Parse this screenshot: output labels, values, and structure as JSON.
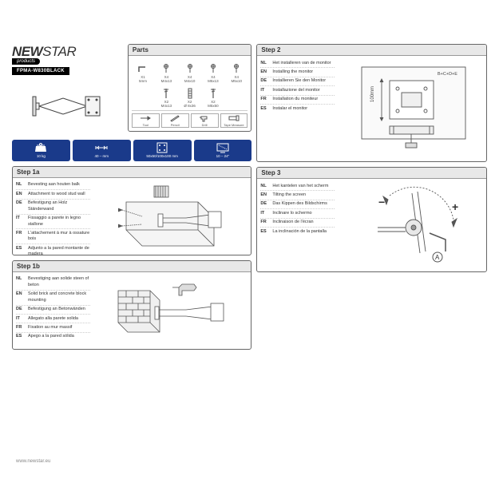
{
  "brand": {
    "name_1": "NEW",
    "name_2": "STAR",
    "sub": "products",
    "model": "FPMA-W830BLACK"
  },
  "specs": [
    {
      "value": "10 kg",
      "icon": "weight"
    },
    {
      "value": "40 – mm",
      "icon": "depth"
    },
    {
      "value": "50x50/100x100 mm",
      "icon": "vesa"
    },
    {
      "value": "10 – 24\"",
      "icon": "screen"
    }
  ],
  "parts": {
    "title": "Parts",
    "items": [
      {
        "label": "5mm",
        "qty": "X1",
        "glyph": "hexkey"
      },
      {
        "label": "M4x13",
        "qty": "X4",
        "glyph": "screw"
      },
      {
        "label": "M4x10",
        "qty": "X4",
        "glyph": "screw"
      },
      {
        "label": "M5x13",
        "qty": "X4",
        "glyph": "screw"
      },
      {
        "label": "M5x10",
        "qty": "X4",
        "glyph": "screw"
      },
      {
        "label": "",
        "qty": "",
        "glyph": ""
      },
      {
        "label": "M4x13",
        "qty": "X2",
        "glyph": "screw-long"
      },
      {
        "label": "Ø 8x36",
        "qty": "X2",
        "glyph": "anchor"
      },
      {
        "label": "M5x50",
        "qty": "X2",
        "glyph": "screw-long"
      },
      {
        "label": "",
        "qty": "",
        "glyph": ""
      }
    ],
    "tools": [
      {
        "label": "Tool"
      },
      {
        "label": "Pencil"
      },
      {
        "label": "Drill"
      },
      {
        "label": "Tape Measure"
      }
    ]
  },
  "steps": {
    "s1a": {
      "title": "Step 1a",
      "langs": [
        [
          "NL",
          "Bevesting aan houten balk"
        ],
        [
          "EN",
          "Attachment to wood stud wall"
        ],
        [
          "DE",
          "Befestigung an Holz Ständerwand"
        ],
        [
          "IT",
          "Fissaggio a parete in legno stallone"
        ],
        [
          "FR",
          "L'attachement à mur à ossature bois"
        ],
        [
          "ES",
          "Adjunto a la pared montante de madera"
        ]
      ]
    },
    "s1b": {
      "title": "Step 1b",
      "langs": [
        [
          "NL",
          "Bevestiging aan solide steen of beton"
        ],
        [
          "EN",
          "Solid brick and concrete block mounting"
        ],
        [
          "DE",
          "Befestigung an Betonwänden"
        ],
        [
          "IT",
          "Allegato alla parete solida"
        ],
        [
          "FR",
          "Fixation au mur massif"
        ],
        [
          "ES",
          "Apego a la pared sólida"
        ]
      ]
    },
    "s2": {
      "title": "Step 2",
      "langs": [
        [
          "NL",
          "Het installeren van de monitor"
        ],
        [
          "EN",
          "Installing the monitor"
        ],
        [
          "DE",
          "Installieren Sie den Monitor"
        ],
        [
          "IT",
          "Installazione del monitor"
        ],
        [
          "FR",
          "Installation du moniteur"
        ],
        [
          "ES",
          "Instalar el monitor"
        ]
      ]
    },
    "s3": {
      "title": "Step 3",
      "langs": [
        [
          "NL",
          "Het kantelen van het scherm"
        ],
        [
          "EN",
          "Tilting the screen"
        ],
        [
          "DE",
          "Das Kippen des Bildschirms"
        ],
        [
          "IT",
          "Inclinare lo schermo"
        ],
        [
          "FR",
          "Inclinaison de l'écran"
        ],
        [
          "ES",
          "La inclinación de la pantalla"
        ]
      ]
    }
  },
  "footer": "www.newstar.eu",
  "colors": {
    "panel_border": "#666666",
    "header_bg": "#e8e8e8",
    "chip_bg": "#1a3a8a",
    "line": "#444444"
  },
  "illus": {
    "step2_dim": "100mm",
    "step2_label": "B+C+D+E",
    "step3_a": "A",
    "step3_plus": "+",
    "step3_minus": "−"
  }
}
